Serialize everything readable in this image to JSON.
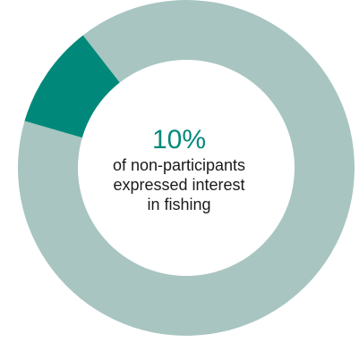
{
  "chart_data": {
    "type": "pie",
    "variant": "donut",
    "categories": [
      "",
      ""
    ],
    "values": [
      10,
      90
    ],
    "colors": [
      "#00897b",
      "#a8c5c1"
    ],
    "center_value": "10%",
    "center_caption": [
      "of non-participants",
      "expressed interest",
      "in fishing"
    ]
  }
}
